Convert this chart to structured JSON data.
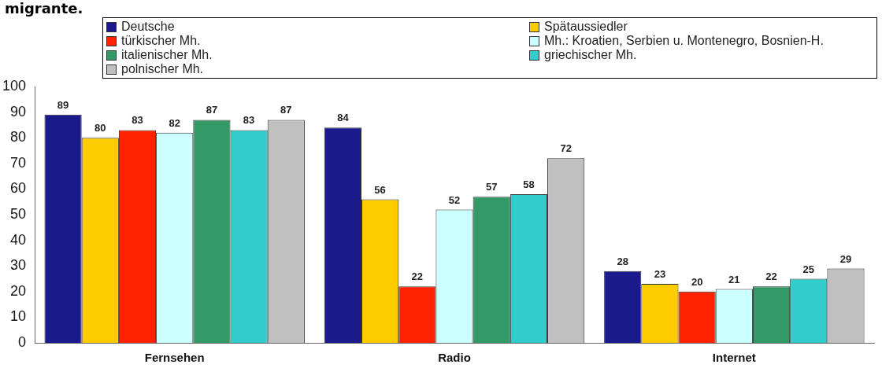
{
  "chart_data": {
    "type": "bar",
    "title": "migrante.",
    "categories": [
      "Fernsehen",
      "Radio",
      "Internet"
    ],
    "series": [
      {
        "name": "Deutsche",
        "color": "#1a1a8c",
        "values": [
          89,
          84,
          28
        ]
      },
      {
        "name": "Spätaussiedler",
        "color": "#ffcc00",
        "values": [
          80,
          56,
          23
        ]
      },
      {
        "name": "türkischer Mh.",
        "color": "#ff2200",
        "values": [
          83,
          22,
          20
        ]
      },
      {
        "name": "Mh.: Kroatien, Serbien u. Montenegro, Bosnien-H.",
        "color": "#ccffff",
        "values": [
          82,
          52,
          21
        ]
      },
      {
        "name": "italienischer Mh.",
        "color": "#339966",
        "values": [
          87,
          57,
          22
        ]
      },
      {
        "name": "griechischer Mh.",
        "color": "#33cccc",
        "values": [
          83,
          58,
          25
        ]
      },
      {
        "name": "polnischer Mh.",
        "color": "#c0c0c0",
        "values": [
          87,
          72,
          29
        ]
      }
    ],
    "ylim": [
      0,
      100
    ],
    "yticks": [
      0,
      10,
      20,
      30,
      40,
      50,
      60,
      70,
      80,
      90,
      100
    ],
    "grid": false,
    "legend": "top",
    "data_labels": true
  }
}
